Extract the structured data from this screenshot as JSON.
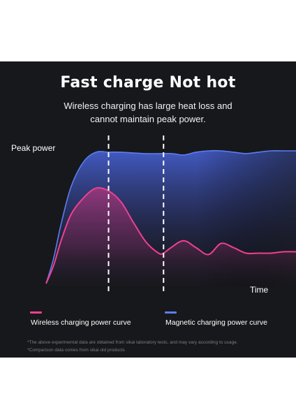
{
  "header": {
    "title": "Fast charge Not hot",
    "subtitle_line1": "Wireless charging has large heat loss and",
    "subtitle_line2": "cannot maintain peak power."
  },
  "colors": {
    "background": "#17181b",
    "magnetic_line": "#5d7ef2",
    "wireless_line": "#f0408e",
    "guide_line": "#ffffff"
  },
  "chart_data": {
    "type": "area",
    "ylabel": "Peak power",
    "xlabel": "Time",
    "x_range": [
      0,
      100
    ],
    "y_range": [
      0,
      100
    ],
    "series": [
      {
        "name": "Magnetic charging power curve",
        "x": [
          0,
          3,
          6,
          10,
          15,
          20,
          25,
          30,
          40,
          50,
          55,
          60,
          65,
          70,
          75,
          80,
          85,
          90,
          95,
          100
        ],
        "values": [
          2,
          20,
          45,
          72,
          90,
          97,
          97,
          97,
          96,
          96,
          95,
          97,
          98,
          98,
          97,
          96,
          97,
          98,
          98,
          98
        ]
      },
      {
        "name": "Wireless charging power curve",
        "x": [
          0,
          3,
          6,
          10,
          15,
          20,
          25,
          30,
          35,
          40,
          45,
          47,
          50,
          55,
          60,
          65,
          70,
          75,
          80,
          85,
          90,
          95,
          100
        ],
        "values": [
          2,
          15,
          33,
          52,
          64,
          71,
          69,
          61,
          46,
          32,
          24,
          24,
          28,
          33,
          28,
          23,
          31,
          28,
          24,
          24,
          24,
          25,
          25
        ]
      }
    ],
    "markers_x": [
      25,
      47
    ],
    "grid": false,
    "legend_position": "bottom"
  },
  "legend": {
    "wireless_label": "Wireless charging power curve",
    "magnetic_label": "Magnetic charging power curve"
  },
  "footnotes": {
    "note1": "*The above experimental data are obtained from sikai laboratory tests, and may vary according to usage.",
    "note2": "*Comparison data comes from sikai old products"
  }
}
